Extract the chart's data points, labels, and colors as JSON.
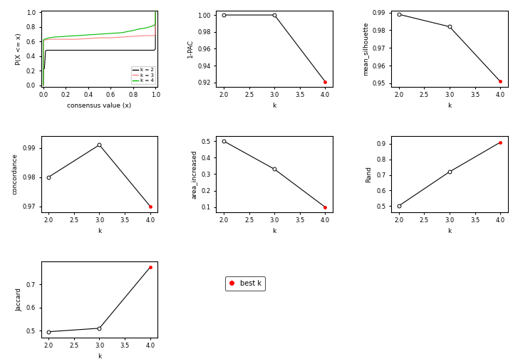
{
  "ecdf": {
    "k2": {
      "x": [
        0.0,
        0.001,
        0.01,
        0.02,
        0.03,
        0.05,
        0.1,
        0.2,
        0.3,
        0.4,
        0.5,
        0.6,
        0.7,
        0.8,
        0.9,
        0.95,
        0.99,
        0.999,
        1.0
      ],
      "y": [
        0.0,
        0.22,
        0.23,
        0.47,
        0.48,
        0.48,
        0.48,
        0.48,
        0.48,
        0.48,
        0.48,
        0.48,
        0.48,
        0.48,
        0.48,
        0.48,
        0.48,
        0.5,
        1.0
      ]
    },
    "k3": {
      "x": [
        0.0,
        0.001,
        0.01,
        0.05,
        0.1,
        0.2,
        0.3,
        0.4,
        0.5,
        0.6,
        0.7,
        0.8,
        0.9,
        0.95,
        0.99,
        0.999,
        1.0
      ],
      "y": [
        0.0,
        0.6,
        0.62,
        0.63,
        0.63,
        0.63,
        0.63,
        0.64,
        0.65,
        0.65,
        0.66,
        0.67,
        0.68,
        0.68,
        0.68,
        0.7,
        1.0
      ]
    },
    "k4": {
      "x": [
        0.0,
        0.001,
        0.01,
        0.05,
        0.1,
        0.2,
        0.3,
        0.4,
        0.5,
        0.6,
        0.7,
        0.8,
        0.85,
        0.9,
        0.95,
        0.99,
        0.999,
        1.0
      ],
      "y": [
        0.0,
        0.62,
        0.63,
        0.65,
        0.66,
        0.67,
        0.68,
        0.69,
        0.7,
        0.71,
        0.72,
        0.75,
        0.77,
        0.78,
        0.8,
        0.82,
        0.85,
        1.0
      ]
    }
  },
  "one_pac": {
    "k": [
      2,
      3,
      4
    ],
    "v": [
      1.0,
      1.0,
      0.921
    ],
    "best_k": 4,
    "ylim": [
      0.915,
      1.005
    ],
    "yticks": [
      0.92,
      0.94,
      0.96,
      0.98,
      1.0
    ]
  },
  "mean_silhouette": {
    "k": [
      2,
      3,
      4
    ],
    "v": [
      0.989,
      0.982,
      0.951
    ],
    "best_k": 4,
    "ylim": [
      0.948,
      0.991
    ],
    "yticks": [
      0.95,
      0.96,
      0.97,
      0.98,
      0.99
    ]
  },
  "concordance": {
    "k": [
      2,
      3,
      4
    ],
    "v": [
      0.98,
      0.991,
      0.97
    ],
    "best_k": 4,
    "ylim": [
      0.968,
      0.994
    ],
    "yticks": [
      0.97,
      0.98,
      0.99
    ]
  },
  "area_increased": {
    "k": [
      2,
      3,
      4
    ],
    "v": [
      0.5,
      0.33,
      0.1
    ],
    "best_k": 4,
    "ylim": [
      0.07,
      0.53
    ],
    "yticks": [
      0.1,
      0.2,
      0.3,
      0.4,
      0.5
    ]
  },
  "rand": {
    "k": [
      2,
      3,
      4
    ],
    "v": [
      0.5,
      0.72,
      0.91
    ],
    "best_k": 4,
    "ylim": [
      0.46,
      0.95
    ],
    "yticks": [
      0.5,
      0.6,
      0.7,
      0.8,
      0.9
    ]
  },
  "jaccard": {
    "k": [
      2,
      3,
      4
    ],
    "v": [
      0.495,
      0.51,
      0.775
    ],
    "best_k": 4,
    "ylim": [
      0.47,
      0.8
    ],
    "yticks": [
      0.5,
      0.6,
      0.7
    ]
  },
  "colors": {
    "k2": "#000000",
    "k3": "#FF8080",
    "k4": "#00BB00",
    "best_dot": "#FF0000",
    "open_dot": "#000000",
    "line": "#000000"
  }
}
